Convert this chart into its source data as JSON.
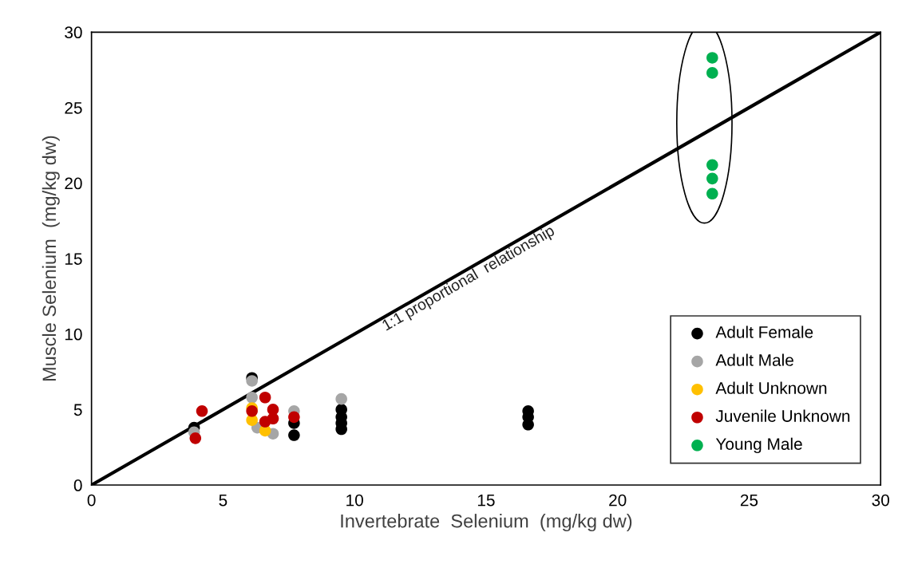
{
  "chart_data": {
    "type": "scatter",
    "xlabel": "Invertebrate  Selenium  (mg/kg dw)",
    "ylabel": "Muscle Selenium  (mg/kg dw)",
    "xlim": [
      0,
      30
    ],
    "ylim": [
      0,
      30
    ],
    "xticks": [
      0,
      5,
      10,
      15,
      20,
      25,
      30
    ],
    "yticks": [
      0,
      5,
      10,
      15,
      20,
      25,
      30
    ],
    "grid": false,
    "legend": "bottom right",
    "marker": "circle",
    "series": [
      {
        "name": "Adult Female",
        "color": "#000000",
        "x": [
          3.9,
          6.1,
          7.7,
          7.7,
          9.5,
          9.5,
          9.5,
          9.5,
          16.6,
          16.6,
          16.6
        ],
        "values": [
          3.8,
          7.1,
          4.1,
          3.3,
          5.0,
          4.5,
          4.1,
          3.7,
          4.9,
          4.5,
          4.0
        ]
      },
      {
        "name": "Adult Male",
        "color": "#a6a6a6",
        "x": [
          3.9,
          6.1,
          6.1,
          6.3,
          6.9,
          7.7,
          9.5
        ],
        "values": [
          3.5,
          6.9,
          5.8,
          3.8,
          3.4,
          4.9,
          5.7
        ]
      },
      {
        "name": "Adult Unknown",
        "color": "#ffc000",
        "x": [
          6.1,
          6.1,
          6.6
        ],
        "values": [
          5.1,
          4.3,
          3.6
        ]
      },
      {
        "name": "Juvenile Unknown",
        "color": "#c00000",
        "x": [
          3.95,
          4.2,
          6.1,
          6.6,
          6.9,
          6.9,
          6.6,
          7.7
        ],
        "values": [
          3.1,
          4.9,
          4.9,
          5.8,
          5.0,
          4.4,
          4.2,
          4.5
        ]
      },
      {
        "name": "Young Male",
        "color": "#00b050",
        "x": [
          23.6,
          23.6,
          23.6,
          23.6,
          23.6
        ],
        "values": [
          28.3,
          27.3,
          21.2,
          20.3,
          19.3
        ]
      },
      {
        "type": "line",
        "marker": "none",
        "color": "#000000",
        "x": [
          0,
          30
        ],
        "values": [
          0,
          30
        ]
      }
    ],
    "annotations": [
      "1:1 proportional  relationship"
    ]
  }
}
